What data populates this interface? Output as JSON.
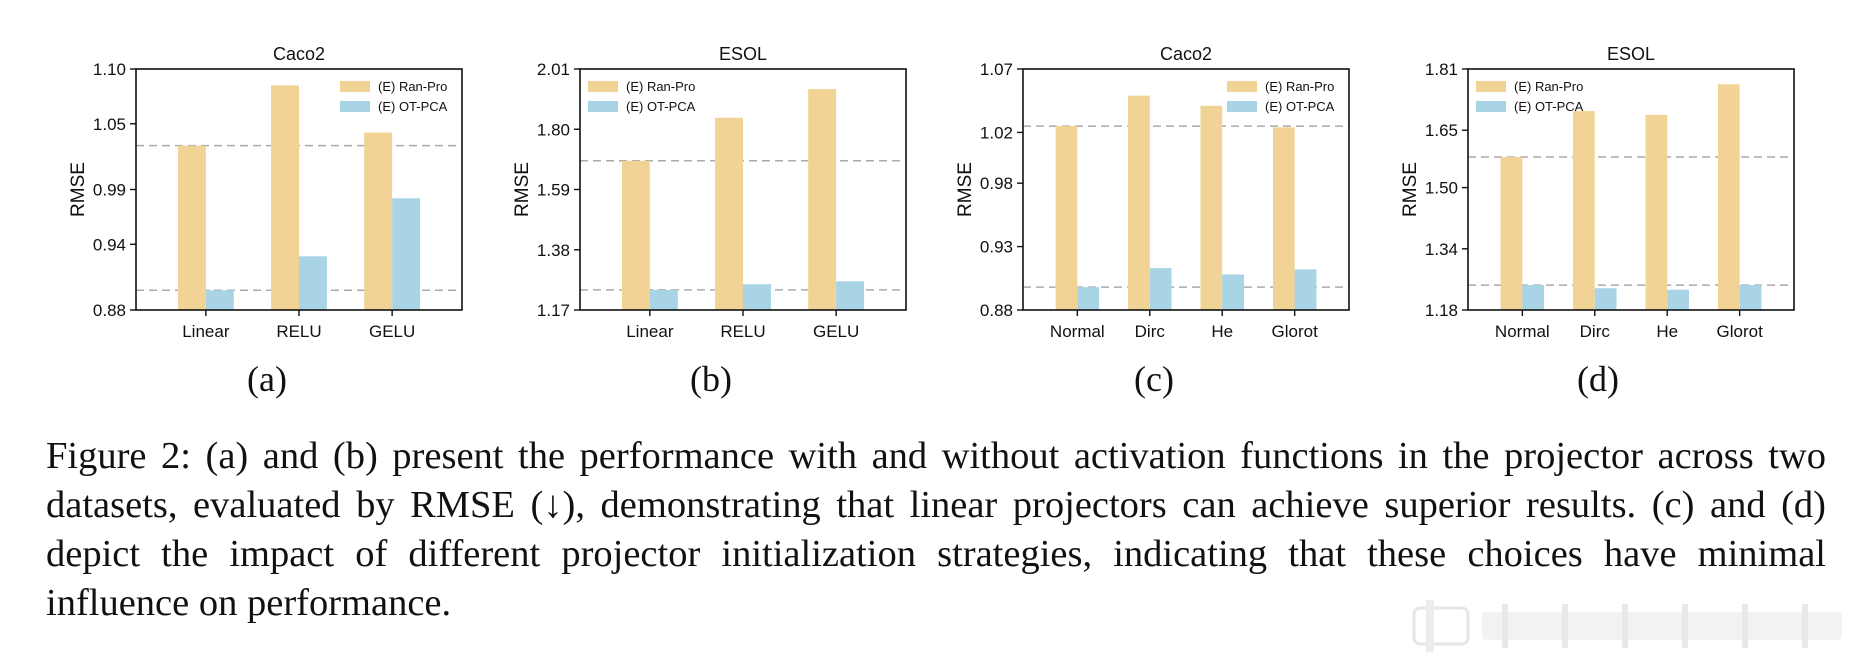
{
  "panels": [
    "(a)",
    "(b)",
    "(c)",
    "(d)"
  ],
  "caption": "Figure 2: (a) and (b) present the performance with and without activation functions in the projector across two datasets, evaluated by RMSE (↓), demonstrating that linear projectors can achieve superior results. (c) and (d) depict the impact of different projector initialization strategies, indicating that these choices have minimal influence on performance.",
  "colors": {
    "ran_pro": "#f1d396",
    "ot_pca": "#a8d4e6",
    "ref_line": "#aaaaaa",
    "axis": "#111111"
  },
  "chart_data": [
    {
      "type": "bar",
      "title": "Caco2",
      "ylabel": "RMSE",
      "ylim": [
        0.88,
        1.1
      ],
      "yticks": [
        "0.88",
        "0.94",
        "0.99",
        "1.05",
        "1.10"
      ],
      "categories": [
        "Linear",
        "RELU",
        "GELU"
      ],
      "series": [
        {
          "name": "(E) Ran-Pro",
          "values": [
            1.03,
            1.085,
            1.042
          ]
        },
        {
          "name": "(E) OT-PCA",
          "values": [
            0.898,
            0.929,
            0.982
          ]
        }
      ],
      "ref_lines": [
        1.03,
        0.898
      ],
      "legend": "top-right"
    },
    {
      "type": "bar",
      "title": "ESOL",
      "ylabel": "RMSE",
      "ylim": [
        1.17,
        2.01
      ],
      "yticks": [
        "1.17",
        "1.38",
        "1.59",
        "1.80",
        "2.01"
      ],
      "categories": [
        "Linear",
        "RELU",
        "GELU"
      ],
      "series": [
        {
          "name": "(E) Ran-Pro",
          "values": [
            1.69,
            1.84,
            1.94
          ]
        },
        {
          "name": "(E) OT-PCA",
          "values": [
            1.24,
            1.26,
            1.27
          ]
        }
      ],
      "ref_lines": [
        1.69,
        1.24
      ],
      "legend": "top-left"
    },
    {
      "type": "bar",
      "title": "Caco2",
      "ylabel": "RMSE",
      "ylim": [
        0.88,
        1.07
      ],
      "yticks": [
        "0.88",
        "0.93",
        "0.98",
        "1.02",
        "1.07"
      ],
      "categories": [
        "Normal",
        "Dirc",
        "He",
        "Glorot"
      ],
      "series": [
        {
          "name": "(E) Ran-Pro",
          "values": [
            1.025,
            1.049,
            1.041,
            1.024
          ]
        },
        {
          "name": "(E) OT-PCA",
          "values": [
            0.898,
            0.913,
            0.908,
            0.912
          ]
        }
      ],
      "ref_lines": [
        1.025,
        0.898
      ],
      "legend": "top-right"
    },
    {
      "type": "bar",
      "title": "ESOL",
      "ylabel": "RMSE",
      "ylim": [
        1.18,
        1.81
      ],
      "yticks": [
        "1.18",
        "1.34",
        "1.50",
        "1.65",
        "1.81"
      ],
      "categories": [
        "Normal",
        "Dirc",
        "He",
        "Glorot"
      ],
      "series": [
        {
          "name": "(E) Ran-Pro",
          "values": [
            1.58,
            1.7,
            1.69,
            1.77
          ]
        },
        {
          "name": "(E) OT-PCA",
          "values": [
            1.245,
            1.237,
            1.233,
            1.245
          ]
        }
      ],
      "ref_lines": [
        1.58,
        1.245
      ],
      "legend": "top-left"
    }
  ]
}
